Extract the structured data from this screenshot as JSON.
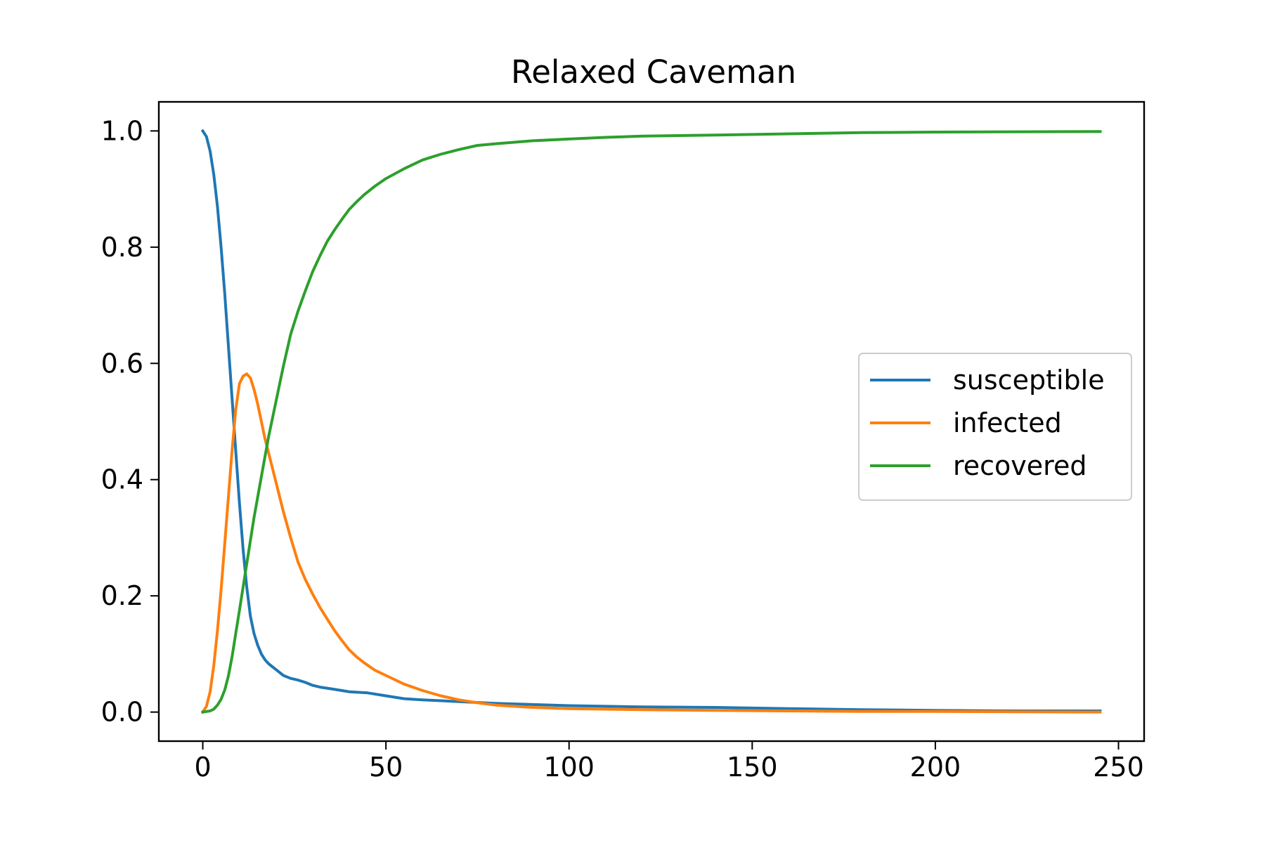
{
  "chart_data": {
    "type": "line",
    "title": "Relaxed Caveman",
    "xlabel": "",
    "ylabel": "",
    "xlim": [
      -12,
      257
    ],
    "ylim": [
      -0.05,
      1.05
    ],
    "xticks": [
      0,
      50,
      100,
      150,
      200,
      250
    ],
    "xtick_labels": [
      "0",
      "50",
      "100",
      "150",
      "200",
      "250"
    ],
    "yticks": [
      0.0,
      0.2,
      0.4,
      0.6,
      0.8,
      1.0
    ],
    "ytick_labels": [
      "0.0",
      "0.2",
      "0.4",
      "0.6",
      "0.8",
      "1.0"
    ],
    "grid": false,
    "legend_position": "center-right",
    "series": [
      {
        "name": "susceptible",
        "color": "#1f77b4",
        "x": [
          0,
          1,
          2,
          3,
          4,
          5,
          6,
          7,
          8,
          9,
          10,
          11,
          12,
          13,
          14,
          15,
          16,
          17,
          18,
          20,
          22,
          24,
          26,
          28,
          30,
          32,
          35,
          38,
          40,
          45,
          50,
          55,
          60,
          70,
          80,
          90,
          100,
          110,
          120,
          140,
          160,
          180,
          200,
          220,
          245
        ],
        "y": [
          1.0,
          0.99,
          0.965,
          0.925,
          0.87,
          0.8,
          0.72,
          0.63,
          0.54,
          0.45,
          0.36,
          0.28,
          0.215,
          0.165,
          0.135,
          0.115,
          0.1,
          0.09,
          0.083,
          0.073,
          0.063,
          0.058,
          0.055,
          0.051,
          0.046,
          0.043,
          0.04,
          0.037,
          0.035,
          0.033,
          0.028,
          0.023,
          0.021,
          0.018,
          0.015,
          0.013,
          0.011,
          0.01,
          0.009,
          0.008,
          0.006,
          0.004,
          0.003,
          0.002,
          0.002
        ]
      },
      {
        "name": "infected",
        "color": "#ff7f0e",
        "x": [
          0,
          1,
          2,
          3,
          4,
          5,
          6,
          7,
          8,
          9,
          10,
          11,
          12,
          13,
          14,
          15,
          16,
          17,
          18,
          19,
          20,
          22,
          24,
          26,
          28,
          30,
          32,
          34,
          36,
          38,
          40,
          42,
          44,
          47,
          50,
          55,
          60,
          65,
          70,
          75,
          80,
          90,
          100,
          110,
          120,
          140,
          160,
          180,
          200,
          245
        ],
        "y": [
          0.0,
          0.01,
          0.035,
          0.08,
          0.14,
          0.21,
          0.29,
          0.37,
          0.45,
          0.52,
          0.565,
          0.578,
          0.582,
          0.575,
          0.555,
          0.53,
          0.5,
          0.47,
          0.445,
          0.42,
          0.395,
          0.345,
          0.3,
          0.258,
          0.228,
          0.203,
          0.18,
          0.16,
          0.14,
          0.123,
          0.107,
          0.095,
          0.085,
          0.072,
          0.063,
          0.048,
          0.037,
          0.028,
          0.021,
          0.016,
          0.012,
          0.008,
          0.006,
          0.005,
          0.004,
          0.003,
          0.002,
          0.001,
          0.001,
          0.0
        ]
      },
      {
        "name": "recovered",
        "color": "#2ca02c",
        "x": [
          0,
          2,
          3,
          4,
          5,
          6,
          7,
          8,
          9,
          10,
          11,
          12,
          13,
          14,
          15,
          16,
          17,
          18,
          19,
          20,
          22,
          24,
          26,
          28,
          30,
          32,
          34,
          36,
          38,
          40,
          42,
          44,
          47,
          50,
          55,
          60,
          65,
          70,
          75,
          80,
          90,
          100,
          110,
          120,
          140,
          160,
          180,
          200,
          245
        ],
        "y": [
          0.0,
          0.002,
          0.005,
          0.012,
          0.022,
          0.038,
          0.062,
          0.095,
          0.135,
          0.175,
          0.215,
          0.255,
          0.295,
          0.335,
          0.37,
          0.405,
          0.44,
          0.475,
          0.505,
          0.535,
          0.595,
          0.65,
          0.69,
          0.725,
          0.758,
          0.785,
          0.81,
          0.83,
          0.848,
          0.865,
          0.878,
          0.89,
          0.905,
          0.918,
          0.935,
          0.95,
          0.96,
          0.968,
          0.975,
          0.978,
          0.983,
          0.986,
          0.989,
          0.991,
          0.993,
          0.995,
          0.997,
          0.998,
          0.999
        ]
      }
    ]
  }
}
